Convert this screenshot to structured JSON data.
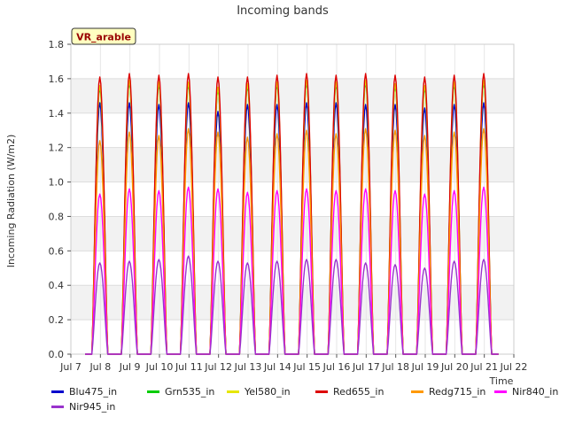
{
  "chart_data": {
    "type": "line",
    "title": "Incoming bands",
    "ylabel": "Incoming Radiation (W/m2)",
    "xlabel": "Time",
    "site_label": "VR_arable",
    "ylim": [
      0,
      1.8
    ],
    "yticks": [
      "0.0",
      "0.2",
      "0.4",
      "0.6",
      "0.8",
      "1.0",
      "1.2",
      "1.4",
      "1.6",
      "1.8"
    ],
    "xticks": [
      "Jul 7",
      "Jul 8",
      "Jul 9",
      "Jul 10",
      "Jul 11",
      "Jul 12",
      "Jul 13",
      "Jul 14",
      "Jul 15",
      "Jul 16",
      "Jul 17",
      "Jul 18",
      "Jul 19",
      "Jul 20",
      "Jul 21",
      "Jul 22"
    ],
    "xrange_days": [
      7,
      22
    ],
    "day_centers": [
      7.98,
      8.98,
      9.98,
      10.98,
      11.98,
      12.98,
      13.98,
      14.98,
      15.98,
      16.98,
      17.98,
      18.98,
      19.98,
      20.98
    ],
    "grid": true,
    "legend_position": "bottom",
    "series": [
      {
        "name": "Blu475_in",
        "color": "#0000cc",
        "daily_peaks": [
          1.46,
          1.46,
          1.45,
          1.46,
          1.41,
          1.45,
          1.45,
          1.46,
          1.46,
          1.45,
          1.45,
          1.43,
          1.45,
          1.46
        ]
      },
      {
        "name": "Grn535_in",
        "color": "#00cc00",
        "daily_peaks": [
          1.55,
          1.58,
          1.57,
          1.57,
          1.54,
          1.56,
          1.57,
          1.58,
          1.57,
          1.58,
          1.56,
          1.55,
          1.57,
          1.58
        ]
      },
      {
        "name": "Yel580_in",
        "color": "#e6e600",
        "daily_peaks": [
          1.56,
          1.59,
          1.58,
          1.58,
          1.55,
          1.57,
          1.58,
          1.59,
          1.58,
          1.59,
          1.57,
          1.56,
          1.58,
          1.59
        ]
      },
      {
        "name": "Red655_in",
        "color": "#dd0000",
        "daily_peaks": [
          1.61,
          1.63,
          1.62,
          1.63,
          1.61,
          1.61,
          1.62,
          1.63,
          1.62,
          1.63,
          1.62,
          1.61,
          1.62,
          1.63
        ]
      },
      {
        "name": "Redg715_in",
        "color": "#ff9900",
        "daily_peaks": [
          1.24,
          1.29,
          1.27,
          1.31,
          1.29,
          1.26,
          1.28,
          1.3,
          1.28,
          1.31,
          1.3,
          1.27,
          1.29,
          1.31
        ]
      },
      {
        "name": "Nir840_in",
        "color": "#ff00ff",
        "daily_peaks": [
          0.93,
          0.96,
          0.95,
          0.97,
          0.96,
          0.94,
          0.95,
          0.96,
          0.95,
          0.96,
          0.95,
          0.93,
          0.95,
          0.97
        ]
      },
      {
        "name": "Nir945_in",
        "color": "#9933cc",
        "daily_peaks": [
          0.53,
          0.54,
          0.55,
          0.57,
          0.54,
          0.53,
          0.54,
          0.55,
          0.55,
          0.53,
          0.52,
          0.5,
          0.54,
          0.55
        ]
      }
    ]
  }
}
